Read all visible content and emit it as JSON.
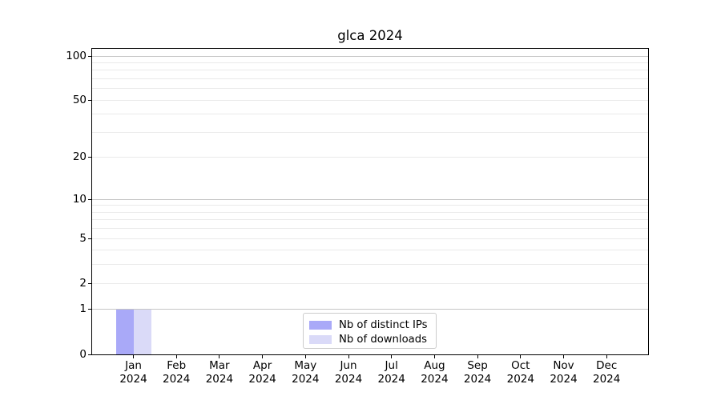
{
  "chart_data": {
    "type": "bar",
    "title": "glca 2024",
    "xlabel": "",
    "ylabel": "",
    "categories": [
      {
        "month": "Jan",
        "year": "2024"
      },
      {
        "month": "Feb",
        "year": "2024"
      },
      {
        "month": "Mar",
        "year": "2024"
      },
      {
        "month": "Apr",
        "year": "2024"
      },
      {
        "month": "May",
        "year": "2024"
      },
      {
        "month": "Jun",
        "year": "2024"
      },
      {
        "month": "Jul",
        "year": "2024"
      },
      {
        "month": "Aug",
        "year": "2024"
      },
      {
        "month": "Sep",
        "year": "2024"
      },
      {
        "month": "Oct",
        "year": "2024"
      },
      {
        "month": "Nov",
        "year": "2024"
      },
      {
        "month": "Dec",
        "year": "2024"
      }
    ],
    "series": [
      {
        "name": "Nb of distinct IPs",
        "color": "#a9a9f8",
        "values": [
          1,
          0,
          0,
          0,
          0,
          0,
          0,
          0,
          0,
          0,
          0,
          0
        ]
      },
      {
        "name": "Nb of downloads",
        "color": "#dadaf8",
        "values": [
          1,
          0,
          0,
          0,
          0,
          0,
          0,
          0,
          0,
          0,
          0,
          0
        ]
      }
    ],
    "yscale": "log1p",
    "ylim": [
      0,
      112
    ],
    "y_ticks": [
      0,
      1,
      2,
      5,
      10,
      20,
      50,
      100
    ],
    "y_gridlines_major": [
      1,
      10,
      100
    ],
    "y_gridlines_minor": [
      2,
      3,
      4,
      5,
      6,
      7,
      8,
      9,
      20,
      30,
      40,
      50,
      60,
      70,
      80,
      90
    ],
    "grid": true,
    "legend_position": "lower center (inside plot)"
  },
  "colors": {
    "grid_major": "#c5c5c5",
    "grid_minor": "#eaeaea",
    "spine": "#000000",
    "text": "#000000",
    "legend_border": "#cccccc",
    "background": "#ffffff"
  }
}
